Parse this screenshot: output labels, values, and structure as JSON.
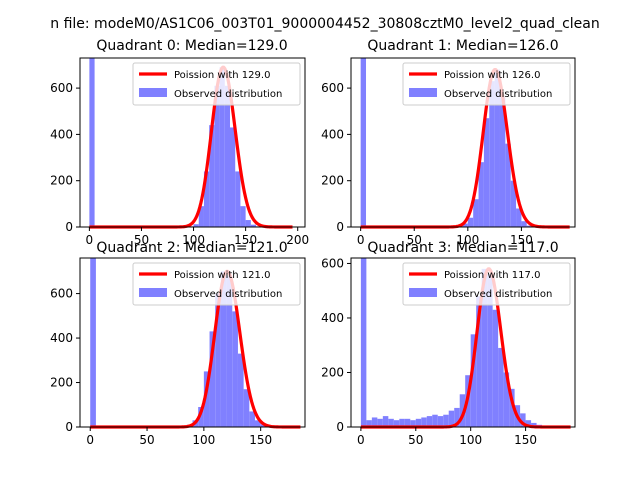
{
  "figure_title": "n file: modeM0/AS1C06_003T01_9000004452_30808cztM0_level2_quad_clean",
  "colors": {
    "poisson": "#ff0000",
    "observed": "#8080ff",
    "axis": "#000000"
  },
  "chart_data": [
    {
      "type": "bar",
      "title": "Quadrant 0: Median=129.0",
      "xlim": [
        -9,
        207
      ],
      "ylim": [
        0,
        730
      ],
      "xticks": [
        0,
        50,
        100,
        150,
        200
      ],
      "xtick_labels": [
        "0",
        "50",
        "100",
        "150",
        "200"
      ],
      "yticks": [
        0,
        200,
        400,
        600
      ],
      "ytick_labels": [
        "0",
        "200",
        "400",
        "600"
      ],
      "poisson_mean": 129,
      "legend": {
        "line": "Poission with 129.0",
        "bars": "Observed distribution",
        "placement": "upper right"
      },
      "bins": {
        "x": [
          0,
          95,
          100,
          105,
          110,
          115,
          120,
          125,
          130,
          135,
          140,
          145,
          150,
          155,
          160
        ],
        "y": [
          730,
          3,
          12,
          90,
          240,
          440,
          610,
          690,
          610,
          430,
          240,
          90,
          30,
          10,
          3
        ]
      }
    },
    {
      "type": "bar",
      "title": "Quadrant 1: Median=126.0",
      "xlim": [
        -9,
        200
      ],
      "ylim": [
        0,
        730
      ],
      "xticks": [
        0,
        50,
        100,
        150
      ],
      "xtick_labels": [
        "0",
        "50",
        "100",
        "150"
      ],
      "yticks": [
        0,
        200,
        400,
        600
      ],
      "ytick_labels": [
        "0",
        "200",
        "400",
        "600"
      ],
      "poisson_mean": 126,
      "legend": {
        "line": "Poission with 126.0",
        "bars": "Observed distribution",
        "placement": "upper right"
      },
      "bins": {
        "x": [
          0,
          90,
          95,
          100,
          105,
          110,
          115,
          120,
          125,
          130,
          135,
          140,
          145,
          150,
          155
        ],
        "y": [
          730,
          5,
          15,
          40,
          120,
          280,
          470,
          630,
          680,
          560,
          360,
          200,
          80,
          25,
          6
        ]
      }
    },
    {
      "type": "bar",
      "title": "Quadrant 2: Median=121.0",
      "xlim": [
        -9,
        189
      ],
      "ylim": [
        0,
        760
      ],
      "xticks": [
        0,
        50,
        100,
        150
      ],
      "xtick_labels": [
        "0",
        "50",
        "100",
        "150"
      ],
      "yticks": [
        0,
        200,
        400,
        600
      ],
      "ytick_labels": [
        "0",
        "200",
        "400",
        "600"
      ],
      "poisson_mean": 121,
      "legend": {
        "line": "Poission with 121.0",
        "bars": "Observed distribution",
        "placement": "upper right"
      },
      "bins": {
        "x": [
          0,
          75,
          85,
          90,
          95,
          100,
          105,
          110,
          115,
          120,
          125,
          130,
          135,
          140,
          145,
          150,
          155,
          160
        ],
        "y": [
          760,
          3,
          10,
          30,
          90,
          250,
          430,
          600,
          700,
          680,
          520,
          330,
          170,
          70,
          30,
          12,
          5,
          2
        ]
      }
    },
    {
      "type": "bar",
      "title": "Quadrant 3: Median=117.0",
      "xlim": [
        -9,
        195
      ],
      "ylim": [
        0,
        620
      ],
      "xticks": [
        0,
        50,
        100,
        150
      ],
      "xtick_labels": [
        "0",
        "50",
        "100",
        "150"
      ],
      "yticks": [
        0,
        200,
        400,
        600
      ],
      "ytick_labels": [
        "0",
        "200",
        "400",
        "600"
      ],
      "poisson_mean": 117,
      "legend": {
        "line": "Poission with 117.0",
        "bars": "Observed distribution",
        "placement": "upper right"
      },
      "bins": {
        "x": [
          0,
          5,
          10,
          15,
          20,
          25,
          30,
          35,
          40,
          45,
          50,
          55,
          60,
          65,
          70,
          75,
          80,
          85,
          90,
          95,
          100,
          105,
          110,
          115,
          120,
          125,
          130,
          135,
          140,
          145,
          150,
          155,
          160,
          165,
          170
        ],
        "y": [
          620,
          25,
          35,
          30,
          40,
          30,
          25,
          30,
          30,
          25,
          30,
          35,
          40,
          45,
          40,
          45,
          60,
          70,
          120,
          190,
          340,
          480,
          580,
          560,
          430,
          290,
          200,
          140,
          80,
          50,
          25,
          15,
          8,
          5,
          3
        ]
      }
    }
  ]
}
